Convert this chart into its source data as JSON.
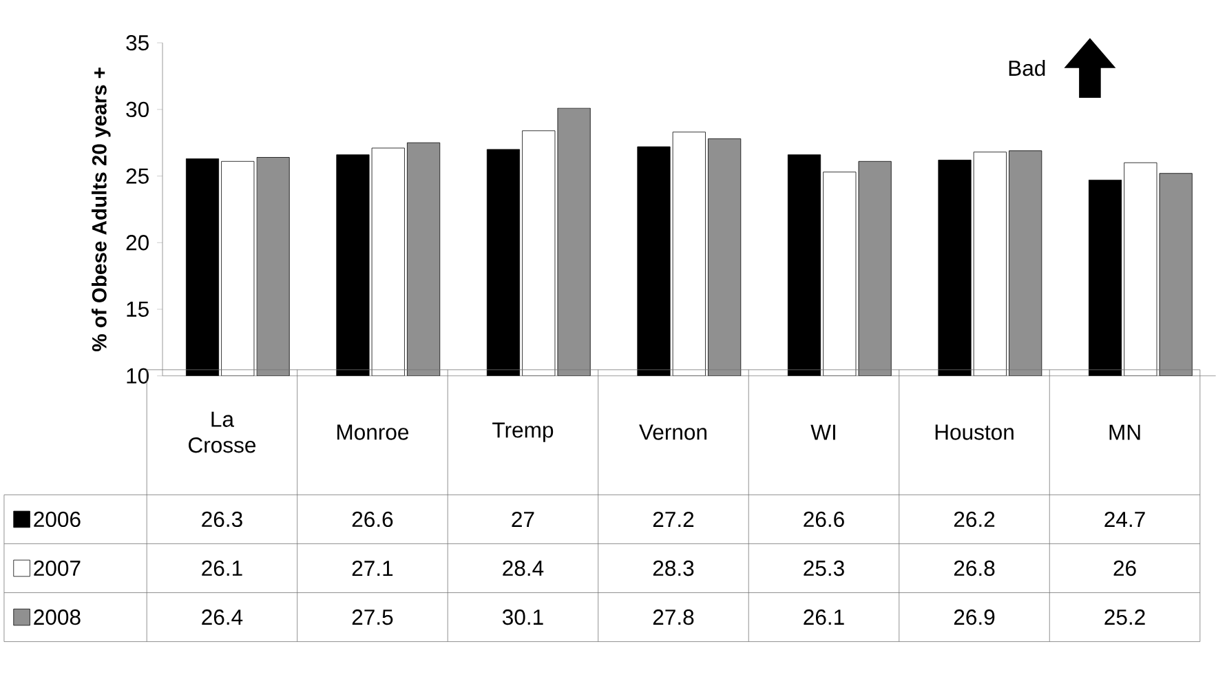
{
  "chart_data": {
    "type": "bar",
    "ylabel": "% of Obese Adults 20 years +",
    "categories": [
      "La Crosse",
      "Monroe",
      "Tremp",
      "Vernon",
      "WI",
      "Houston",
      "MN"
    ],
    "series": [
      {
        "name": "2006",
        "color": "#000000",
        "values": [
          26.3,
          26.6,
          27,
          27.2,
          26.6,
          26.2,
          24.7
        ]
      },
      {
        "name": "2007",
        "color": "#ffffff",
        "values": [
          26.1,
          27.1,
          28.4,
          28.3,
          25.3,
          26.8,
          26
        ]
      },
      {
        "name": "2008",
        "color": "#909090",
        "values": [
          26.4,
          27.5,
          30.1,
          27.8,
          26.1,
          26.9,
          25.2
        ]
      }
    ],
    "ylim": [
      10,
      35
    ],
    "yticks": [
      10,
      15,
      20,
      25,
      30,
      35
    ],
    "data_labels": true,
    "legend": "bottom",
    "annotations": [
      "Bad"
    ]
  }
}
